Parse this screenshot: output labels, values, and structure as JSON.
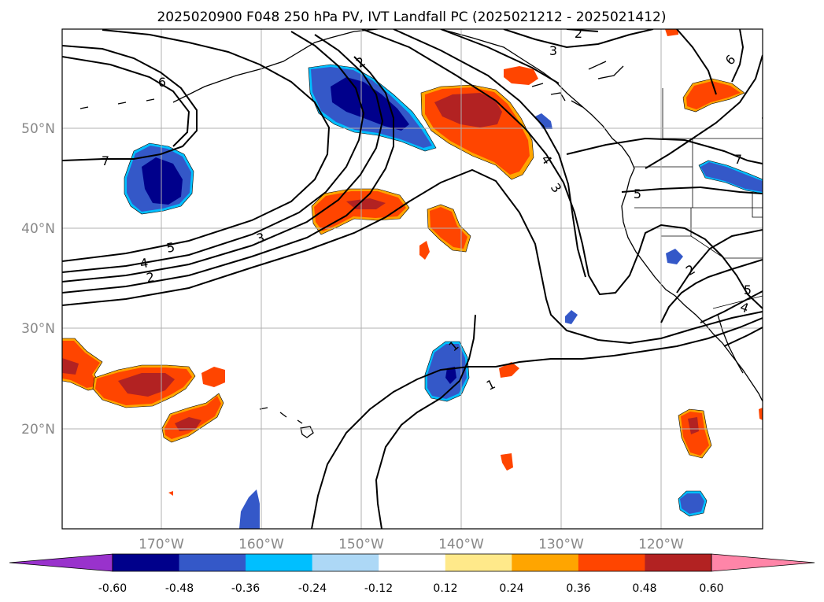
{
  "title": "2025020900 F048 250 hPa PV, IVT Landfall PC (2025021212 - 2025021412)",
  "axes": {
    "lon_labels": [
      "170°W",
      "160°W",
      "150°W",
      "140°W",
      "130°W",
      "120°W"
    ],
    "lat_labels": [
      "50°N",
      "40°N",
      "30°N",
      "20°N"
    ]
  },
  "contour_labels": [
    "1",
    "1",
    "2",
    "2",
    "2",
    "2",
    "3",
    "3",
    "3",
    "4",
    "4",
    "4",
    "5",
    "5",
    "5",
    "6",
    "6",
    "7",
    "7"
  ],
  "colorbar": {
    "ticks": [
      "-0.60",
      "-0.48",
      "-0.36",
      "-0.24",
      "-0.12",
      "0.12",
      "0.24",
      "0.36",
      "0.48",
      "0.60"
    ],
    "colors": [
      "#9932cc",
      "#00008b",
      "#3458c8",
      "#00bfff",
      "#add8f6",
      "#ffffff",
      "#ffe98a",
      "#ffa500",
      "#ff4500",
      "#b22222",
      "#ff85a8"
    ]
  },
  "colors": {
    "positive_dark": "#b22222",
    "positive": "#ff4500",
    "positive_light": "#ffa500",
    "negative_dark": "#00008b",
    "negative": "#3458c8",
    "negative_light": "#00bfff",
    "contour": "#000000",
    "grid": "#b0b0b0"
  }
}
